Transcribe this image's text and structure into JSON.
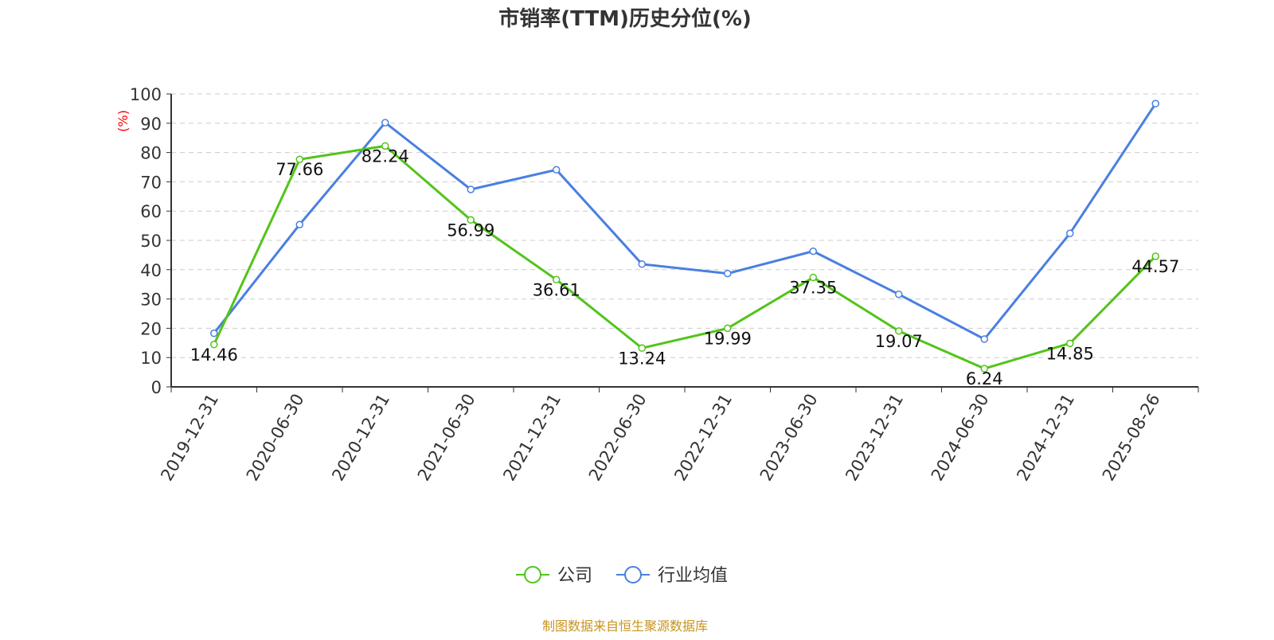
{
  "chart_data": {
    "type": "line",
    "title": "市销率(TTM)历史分位(%)",
    "ylabel": "(%)",
    "ylim": [
      0,
      100
    ],
    "yticks": [
      0,
      10,
      20,
      30,
      40,
      50,
      60,
      70,
      80,
      90,
      100
    ],
    "grid": true,
    "legend_placement": "bottom",
    "categories": [
      "2019-12-31",
      "2020-06-30",
      "2020-12-31",
      "2021-06-30",
      "2021-12-31",
      "2022-06-30",
      "2022-12-31",
      "2023-06-30",
      "2023-12-31",
      "2024-06-30",
      "2024-12-31",
      "2025-08-26"
    ],
    "series": [
      {
        "name": "公司",
        "color": "#52c41a",
        "labels": true,
        "values": [
          14.46,
          77.66,
          82.24,
          56.99,
          36.61,
          13.24,
          19.99,
          37.35,
          19.07,
          6.24,
          14.85,
          44.57
        ]
      },
      {
        "name": "行业均值",
        "color": "#4a7fe0",
        "labels": false,
        "values": [
          18.3,
          55.4,
          90.2,
          67.4,
          74.1,
          41.9,
          38.7,
          46.3,
          31.6,
          16.3,
          52.4,
          96.7
        ]
      }
    ],
    "source": "制图数据来自恒生聚源数据库",
    "source_color": "#c8941e",
    "ylabel_color": "#ff0000"
  }
}
